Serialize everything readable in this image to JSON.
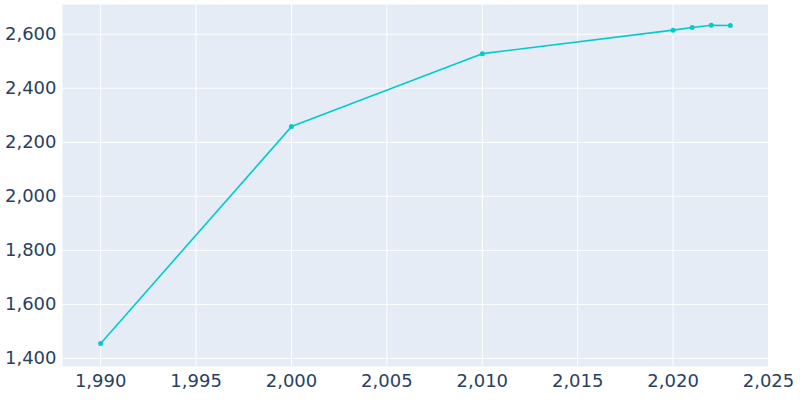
{
  "chart_data": {
    "type": "line",
    "x": [
      1990,
      2000,
      2010,
      2020,
      2021,
      2022,
      2023
    ],
    "values": [
      1455,
      2258,
      2528,
      2615,
      2625,
      2633,
      2632
    ],
    "color": "#00cccc",
    "marker": "circle",
    "xlim": [
      1988,
      2025
    ],
    "xticks": [
      1990,
      1995,
      2000,
      2005,
      2010,
      2015,
      2020,
      2025
    ],
    "ylim": [
      1370,
      2710
    ],
    "yticks": [
      1400,
      1600,
      1800,
      2000,
      2200,
      2400,
      2600
    ],
    "grid": true
  }
}
